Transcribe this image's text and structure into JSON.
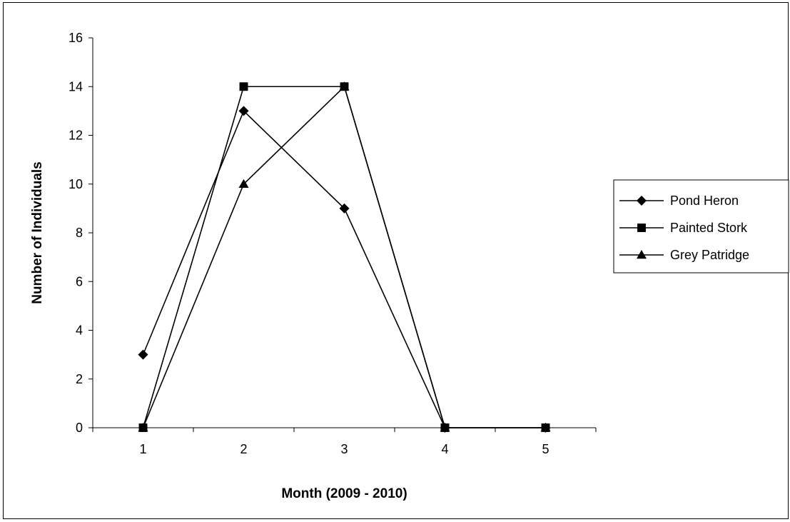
{
  "chart_data": {
    "type": "line",
    "categories": [
      "1",
      "2",
      "3",
      "4",
      "5"
    ],
    "series": [
      {
        "name": "Pond Heron",
        "marker": "diamond",
        "values": [
          3,
          13,
          9,
          0,
          0
        ]
      },
      {
        "name": "Painted Stork",
        "marker": "square",
        "values": [
          0,
          14,
          14,
          0,
          0
        ]
      },
      {
        "name": "Grey Patridge",
        "marker": "triangle",
        "values": [
          0,
          10,
          14,
          0,
          0
        ]
      }
    ],
    "title": "",
    "xlabel": "Month (2009 - 2010)",
    "ylabel": "Number of Individuals",
    "ylim": [
      0,
      16
    ],
    "yticks": [
      0,
      2,
      4,
      6,
      8,
      10,
      12,
      14,
      16
    ],
    "grid": false,
    "legend_position": "right",
    "line_color": "#000000"
  }
}
